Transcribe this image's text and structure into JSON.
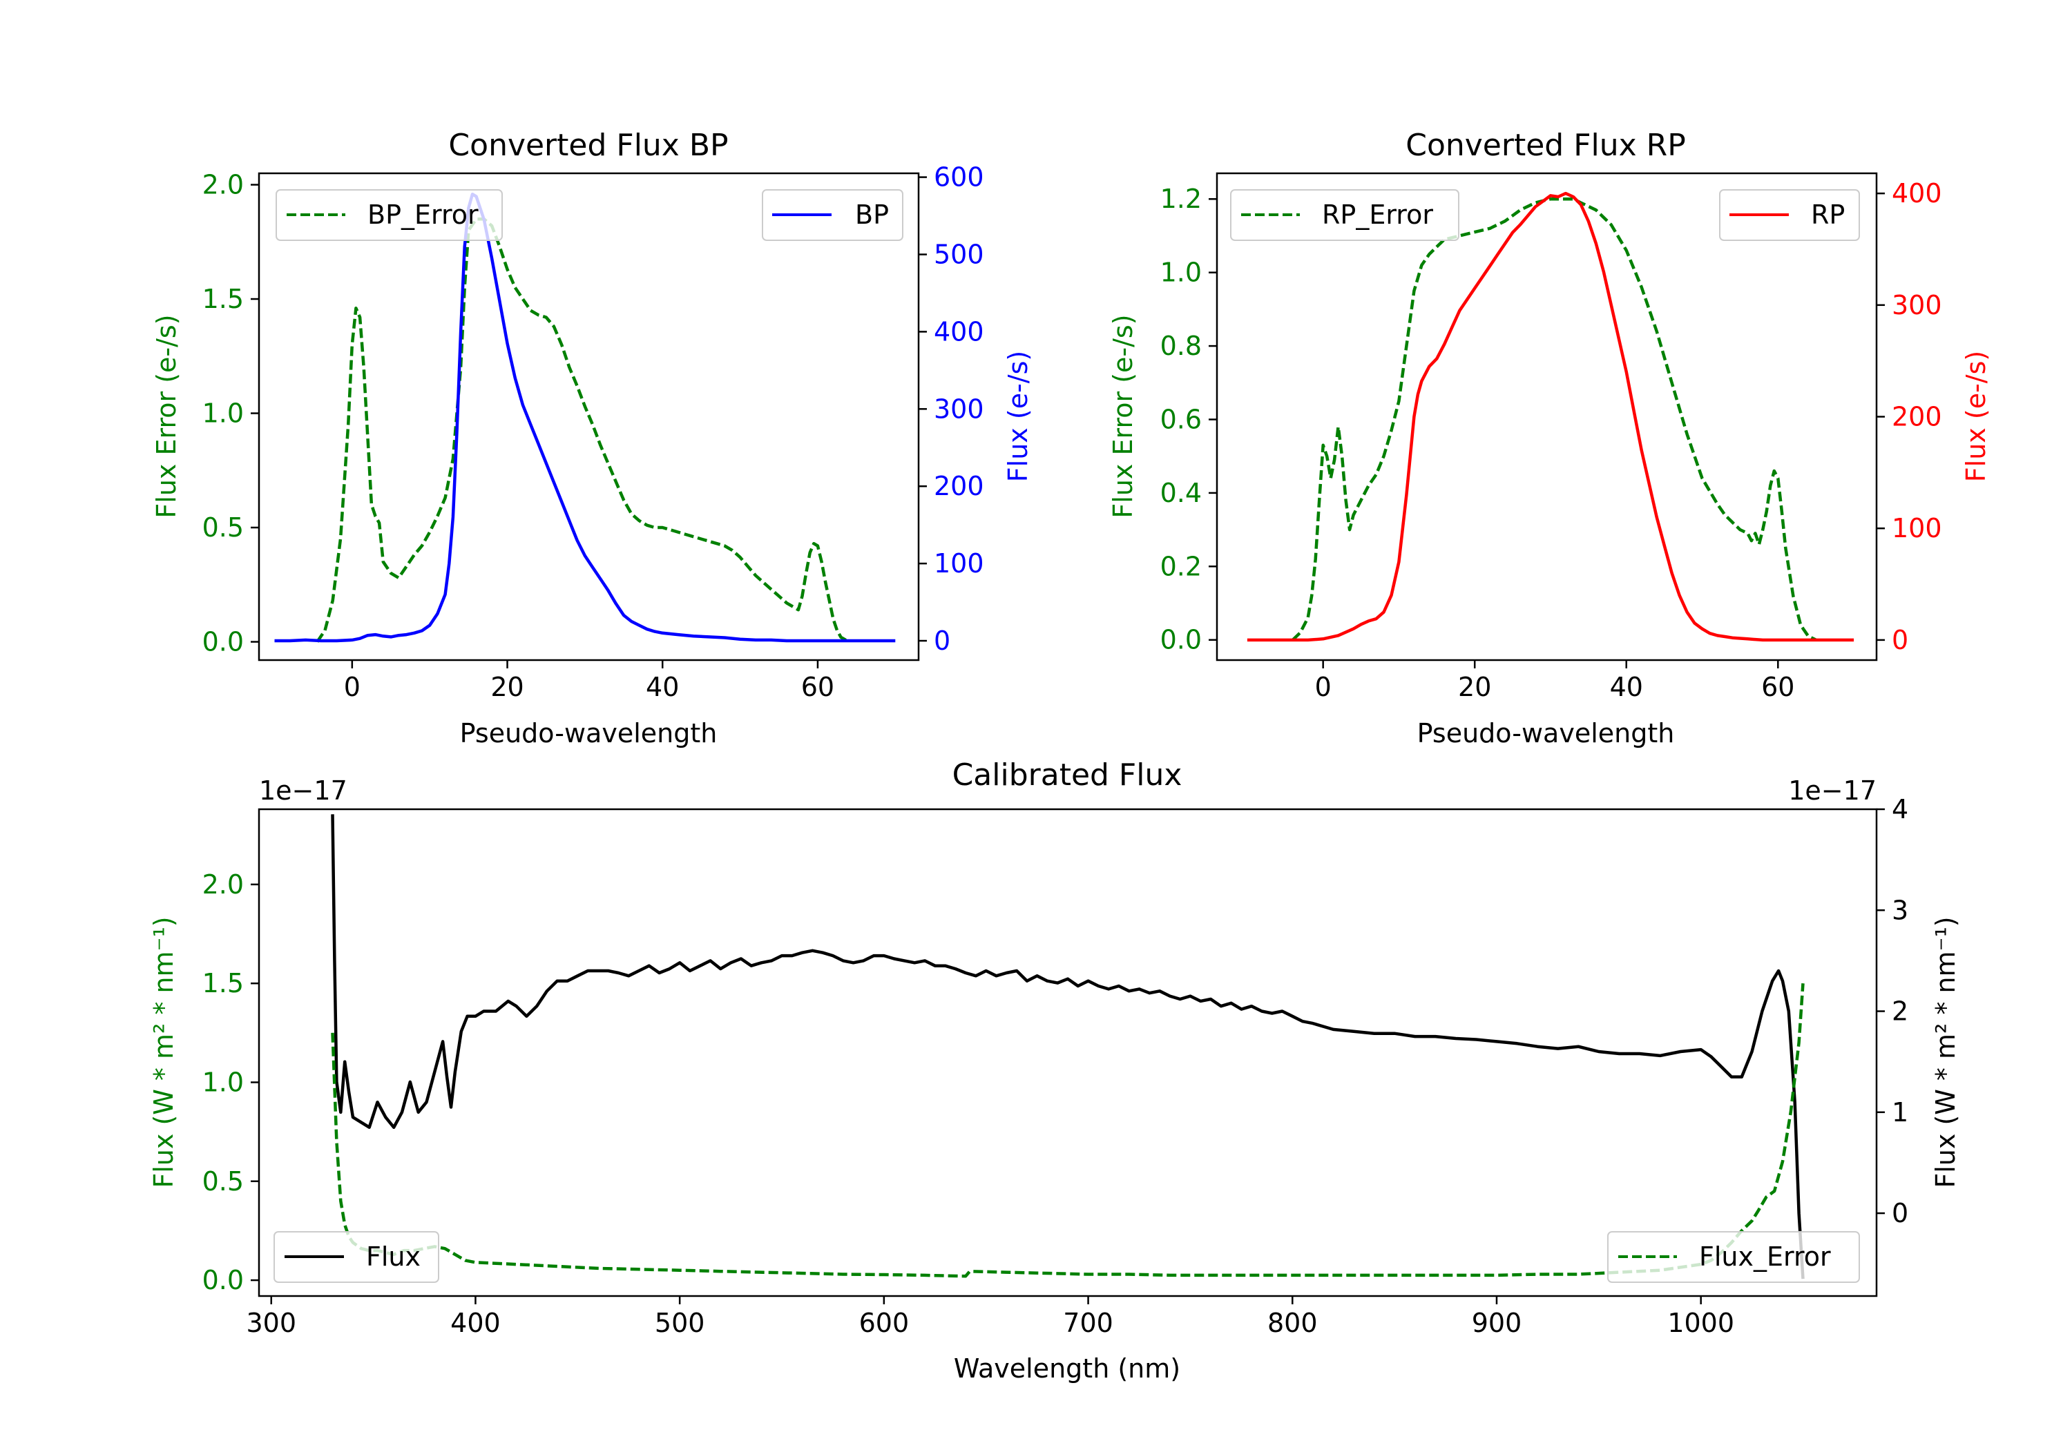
{
  "chart_data": [
    {
      "type": "line",
      "title": "Converted Flux BP",
      "xlabel": "Pseudo-wavelength",
      "ylabel_left": "Flux Error (e-/s)",
      "ylabel_right": "Flux (e-/s)",
      "xlim": [
        -12,
        73
      ],
      "ylim_left": [
        -0.08,
        2.05
      ],
      "ylim_right": [
        -25,
        605
      ],
      "xticks": [
        0,
        20,
        40,
        60
      ],
      "yticks_left": [
        "0.0",
        "0.5",
        "1.0",
        "1.5",
        "2.0"
      ],
      "yticks_right": [
        "0",
        "100",
        "200",
        "300",
        "400",
        "500",
        "600"
      ],
      "legend_left": "BP_Error",
      "legend_right": "BP",
      "series": [
        {
          "name": "BP_Error",
          "axis": "left",
          "style": "dashed",
          "color": "#008000",
          "x": [
            -4.5,
            -3.5,
            -2.5,
            -1.5,
            -0.5,
            0.0,
            0.5,
            1.0,
            1.5,
            2.0,
            2.5,
            3.0,
            3.5,
            4.0,
            5.0,
            6.0,
            7.0,
            8.0,
            9.0,
            10.0,
            11.0,
            12.0,
            13.0,
            14.0,
            14.5,
            15.0,
            16.0,
            17.0,
            18.0,
            19.0,
            20.0,
            21.0,
            22.0,
            23.0,
            24.0,
            25.0,
            26.0,
            27.0,
            28.0,
            29.0,
            30.0,
            31.0,
            32.0,
            33.0,
            34.0,
            35.0,
            36.0,
            37.0,
            38.0,
            39.0,
            40.0,
            41.0,
            42.0,
            43.0,
            44.0,
            45.0,
            46.0,
            47.0,
            48.0,
            49.0,
            50.0,
            51.0,
            52.0,
            53.0,
            54.0,
            55.0,
            56.0,
            57.0,
            57.5,
            58.0,
            58.5,
            59.0,
            59.5,
            60.0,
            60.5,
            61.0,
            61.5,
            62.0,
            62.5,
            63.0,
            63.5,
            64.0
          ],
          "y": [
            0.0,
            0.05,
            0.18,
            0.45,
            0.95,
            1.3,
            1.46,
            1.42,
            1.2,
            0.9,
            0.6,
            0.55,
            0.52,
            0.35,
            0.3,
            0.28,
            0.33,
            0.38,
            0.42,
            0.48,
            0.55,
            0.63,
            0.8,
            1.2,
            1.55,
            1.8,
            1.85,
            1.85,
            1.82,
            1.73,
            1.63,
            1.55,
            1.5,
            1.45,
            1.43,
            1.42,
            1.38,
            1.3,
            1.2,
            1.12,
            1.03,
            0.95,
            0.86,
            0.78,
            0.7,
            0.62,
            0.56,
            0.53,
            0.51,
            0.5,
            0.5,
            0.49,
            0.48,
            0.47,
            0.46,
            0.45,
            0.44,
            0.43,
            0.42,
            0.4,
            0.37,
            0.33,
            0.29,
            0.26,
            0.23,
            0.2,
            0.17,
            0.15,
            0.14,
            0.2,
            0.3,
            0.39,
            0.43,
            0.42,
            0.35,
            0.26,
            0.18,
            0.1,
            0.05,
            0.02,
            0.01,
            0.0
          ]
        },
        {
          "name": "BP",
          "axis": "right",
          "style": "solid",
          "color": "#0000ff",
          "x": [
            -10,
            -8,
            -6,
            -4,
            -2,
            0,
            1,
            2,
            3,
            4,
            5,
            6,
            7,
            8,
            9,
            10,
            11,
            12,
            12.5,
            13,
            13.5,
            14,
            14.5,
            15,
            15.5,
            16,
            17,
            18,
            19,
            20,
            21,
            22,
            23,
            24,
            25,
            26,
            27,
            28,
            29,
            30,
            31,
            32,
            33,
            34,
            35,
            36,
            37,
            38,
            39,
            40,
            42,
            44,
            46,
            48,
            50,
            52,
            54,
            56,
            58,
            60,
            62,
            64,
            66,
            68,
            70
          ],
          "y": [
            0,
            0,
            1,
            0,
            0,
            1,
            3,
            7,
            8,
            6,
            5,
            7,
            8,
            10,
            13,
            20,
            35,
            60,
            100,
            160,
            270,
            400,
            510,
            560,
            578,
            575,
            545,
            495,
            440,
            385,
            340,
            305,
            280,
            255,
            230,
            205,
            180,
            155,
            130,
            110,
            95,
            80,
            65,
            48,
            33,
            25,
            20,
            15,
            12,
            10,
            8,
            6,
            5,
            4,
            2,
            1,
            1,
            0,
            0,
            0,
            0,
            0,
            0,
            0,
            0
          ]
        }
      ]
    },
    {
      "type": "line",
      "title": "Converted Flux RP",
      "xlabel": "Pseudo-wavelength",
      "ylabel_left": "Flux Error (e-/s)",
      "ylabel_right": "Flux (e-/s)",
      "xlim": [
        -14,
        73
      ],
      "ylim_left": [
        -0.055,
        1.27
      ],
      "ylim_right": [
        -18,
        418
      ],
      "xticks": [
        0,
        20,
        40,
        60
      ],
      "yticks_left": [
        "0.0",
        "0.2",
        "0.4",
        "0.6",
        "0.8",
        "1.0",
        "1.2"
      ],
      "yticks_right": [
        "0",
        "100",
        "200",
        "300",
        "400"
      ],
      "legend_left": "RP_Error",
      "legend_right": "RP",
      "series": [
        {
          "name": "RP_Error",
          "axis": "left",
          "style": "dashed",
          "color": "#008000",
          "x": [
            -4,
            -3,
            -2,
            -1.5,
            -1,
            -0.5,
            0,
            0.5,
            1,
            1.5,
            2,
            2.5,
            3,
            3.5,
            4,
            5,
            6,
            7,
            8,
            9,
            10,
            11,
            12,
            13,
            14,
            15,
            16,
            18,
            20,
            22,
            24,
            26,
            28,
            30,
            32,
            33,
            34,
            36,
            38,
            40,
            42,
            44,
            46,
            48,
            50,
            52,
            53,
            54,
            55,
            56,
            56.5,
            57,
            57.5,
            58,
            58.5,
            59,
            59.5,
            60,
            60.5,
            61,
            62,
            63,
            64,
            65
          ],
          "y": [
            0.0,
            0.02,
            0.06,
            0.12,
            0.22,
            0.38,
            0.53,
            0.5,
            0.44,
            0.49,
            0.58,
            0.5,
            0.38,
            0.3,
            0.34,
            0.38,
            0.42,
            0.45,
            0.5,
            0.57,
            0.65,
            0.8,
            0.95,
            1.02,
            1.05,
            1.07,
            1.09,
            1.1,
            1.11,
            1.12,
            1.14,
            1.17,
            1.19,
            1.2,
            1.2,
            1.2,
            1.19,
            1.17,
            1.13,
            1.06,
            0.96,
            0.84,
            0.7,
            0.56,
            0.44,
            0.37,
            0.34,
            0.32,
            0.3,
            0.29,
            0.27,
            0.29,
            0.26,
            0.3,
            0.35,
            0.42,
            0.46,
            0.44,
            0.35,
            0.25,
            0.12,
            0.04,
            0.01,
            0.0
          ]
        },
        {
          "name": "RP",
          "axis": "right",
          "style": "solid",
          "color": "#ff0000",
          "x": [
            -10,
            -8,
            -6,
            -4,
            -2,
            0,
            2,
            4,
            5,
            6,
            7,
            8,
            9,
            10,
            11,
            12,
            12.5,
            13,
            14,
            15,
            16,
            17,
            18,
            19,
            20,
            21,
            22,
            23,
            24,
            25,
            26,
            27,
            28,
            29,
            30,
            31,
            32,
            33,
            34,
            35,
            36,
            37,
            38,
            39,
            40,
            41,
            42,
            43,
            44,
            45,
            46,
            47,
            48,
            49,
            50,
            51,
            52,
            53,
            54,
            56,
            58,
            60,
            62,
            64,
            66,
            68,
            70
          ],
          "y": [
            0,
            0,
            0,
            0,
            0,
            1,
            4,
            10,
            14,
            17,
            19,
            25,
            40,
            70,
            130,
            200,
            220,
            232,
            245,
            252,
            265,
            280,
            295,
            305,
            315,
            325,
            335,
            345,
            355,
            365,
            372,
            380,
            388,
            393,
            398,
            397,
            400,
            397,
            390,
            375,
            355,
            330,
            300,
            270,
            240,
            205,
            170,
            140,
            110,
            85,
            60,
            40,
            25,
            15,
            10,
            6,
            4,
            3,
            2,
            1,
            0,
            0,
            0,
            0,
            0,
            0,
            0
          ]
        }
      ]
    },
    {
      "type": "line",
      "title": "Calibrated Flux",
      "xlabel": "Wavelength (nm)",
      "ylabel_left": "Flux (W * m² * nm⁻¹)",
      "ylabel_right": "Flux (W * m² * nm⁻¹)",
      "offset_left": "1e−17",
      "offset_right": "1e−17",
      "xlim": [
        294,
        1086
      ],
      "ylim_left": [
        -0.08,
        2.38
      ],
      "ylim_right": [
        -0.82,
        4.0
      ],
      "xticks": [
        300,
        400,
        500,
        600,
        700,
        800,
        900,
        1000
      ],
      "yticks_left": [
        "0.0",
        "0.5",
        "1.0",
        "1.5",
        "2.0"
      ],
      "yticks_right": [
        "0",
        "1",
        "2",
        "3",
        "4"
      ],
      "legend_left": "Flux",
      "legend_right": "Flux_Error",
      "series": [
        {
          "name": "Flux",
          "axis": "right",
          "style": "solid",
          "color": "#000000",
          "x": [
            330,
            331,
            332,
            334,
            336,
            338,
            340,
            344,
            348,
            352,
            356,
            360,
            364,
            368,
            372,
            376,
            380,
            384,
            386,
            388,
            390,
            393,
            396,
            400,
            404,
            410,
            416,
            420,
            425,
            430,
            435,
            440,
            445,
            450,
            455,
            460,
            465,
            470,
            475,
            480,
            485,
            490,
            495,
            500,
            505,
            510,
            515,
            520,
            525,
            530,
            535,
            540,
            545,
            550,
            555,
            560,
            565,
            570,
            575,
            580,
            585,
            590,
            595,
            600,
            605,
            610,
            615,
            620,
            625,
            630,
            635,
            640,
            645,
            650,
            655,
            660,
            665,
            670,
            675,
            680,
            685,
            690,
            695,
            700,
            705,
            710,
            715,
            720,
            725,
            730,
            735,
            740,
            745,
            750,
            755,
            760,
            765,
            770,
            775,
            780,
            785,
            790,
            795,
            800,
            805,
            810,
            815,
            820,
            830,
            840,
            850,
            860,
            870,
            880,
            890,
            900,
            910,
            920,
            930,
            940,
            950,
            960,
            970,
            980,
            990,
            1000,
            1005,
            1010,
            1015,
            1020,
            1025,
            1030,
            1035,
            1038,
            1040,
            1043,
            1046,
            1048,
            1050
          ],
          "y": [
            3.95,
            2.5,
            1.3,
            1.0,
            1.5,
            1.2,
            0.95,
            0.9,
            0.85,
            1.1,
            0.95,
            0.85,
            1.0,
            1.3,
            1.0,
            1.1,
            1.4,
            1.7,
            1.35,
            1.05,
            1.4,
            1.8,
            1.95,
            1.95,
            2.0,
            2.0,
            2.1,
            2.05,
            1.95,
            2.05,
            2.2,
            2.3,
            2.3,
            2.35,
            2.4,
            2.4,
            2.4,
            2.38,
            2.35,
            2.4,
            2.45,
            2.38,
            2.42,
            2.48,
            2.4,
            2.45,
            2.5,
            2.42,
            2.48,
            2.52,
            2.45,
            2.48,
            2.5,
            2.55,
            2.55,
            2.58,
            2.6,
            2.58,
            2.55,
            2.5,
            2.48,
            2.5,
            2.55,
            2.55,
            2.52,
            2.5,
            2.48,
            2.5,
            2.45,
            2.45,
            2.42,
            2.38,
            2.35,
            2.4,
            2.35,
            2.38,
            2.4,
            2.3,
            2.35,
            2.3,
            2.28,
            2.32,
            2.25,
            2.3,
            2.25,
            2.22,
            2.25,
            2.2,
            2.22,
            2.18,
            2.2,
            2.15,
            2.12,
            2.15,
            2.1,
            2.12,
            2.05,
            2.08,
            2.02,
            2.05,
            2.0,
            1.98,
            2.0,
            1.95,
            1.9,
            1.88,
            1.85,
            1.82,
            1.8,
            1.78,
            1.78,
            1.75,
            1.75,
            1.73,
            1.72,
            1.7,
            1.68,
            1.65,
            1.63,
            1.65,
            1.6,
            1.58,
            1.58,
            1.56,
            1.6,
            1.62,
            1.55,
            1.45,
            1.35,
            1.35,
            1.6,
            2.0,
            2.3,
            2.4,
            2.3,
            2.0,
            1.1,
            0.0,
            -0.65
          ]
        },
        {
          "name": "Flux_Error",
          "axis": "left",
          "style": "dashed",
          "color": "#008000",
          "x": [
            330,
            332,
            334,
            336,
            338,
            340,
            344,
            348,
            352,
            356,
            360,
            365,
            370,
            375,
            380,
            385,
            390,
            395,
            400,
            420,
            440,
            460,
            480,
            500,
            520,
            540,
            560,
            580,
            600,
            620,
            640,
            642,
            660,
            680,
            700,
            720,
            740,
            760,
            780,
            800,
            820,
            840,
            860,
            880,
            900,
            920,
            940,
            960,
            980,
            1000,
            1005,
            1010,
            1015,
            1020,
            1025,
            1028,
            1032,
            1036,
            1040,
            1044,
            1048,
            1050
          ],
          "y": [
            1.25,
            0.7,
            0.4,
            0.28,
            0.22,
            0.19,
            0.16,
            0.15,
            0.15,
            0.14,
            0.13,
            0.15,
            0.15,
            0.16,
            0.17,
            0.16,
            0.13,
            0.1,
            0.09,
            0.08,
            0.07,
            0.06,
            0.055,
            0.05,
            0.045,
            0.04,
            0.035,
            0.03,
            0.028,
            0.025,
            0.02,
            0.045,
            0.04,
            0.035,
            0.03,
            0.03,
            0.025,
            0.025,
            0.025,
            0.025,
            0.025,
            0.025,
            0.025,
            0.025,
            0.025,
            0.03,
            0.03,
            0.04,
            0.05,
            0.08,
            0.1,
            0.14,
            0.19,
            0.25,
            0.3,
            0.35,
            0.42,
            0.45,
            0.6,
            0.85,
            1.2,
            1.5
          ]
        }
      ]
    }
  ]
}
